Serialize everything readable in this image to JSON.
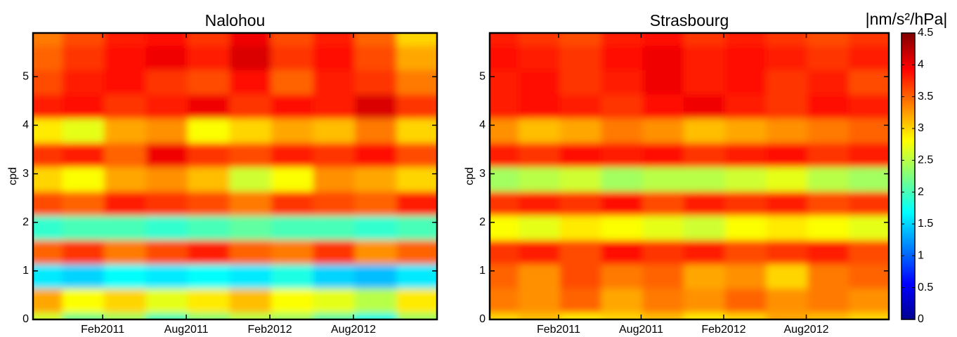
{
  "chart_data": [
    {
      "type": "heatmap",
      "title": "Nalohou",
      "ylabel": "cpd",
      "colormap": "jet",
      "clim": [
        0,
        4.5
      ],
      "xlim": [
        "2010-09",
        "2013-02"
      ],
      "ylim": [
        0,
        5.9
      ],
      "xticks": [
        {
          "value": "2011-02",
          "label": "Feb2011"
        },
        {
          "value": "2011-08",
          "label": "Aug2011"
        },
        {
          "value": "2012-02",
          "label": "Feb2012"
        },
        {
          "value": "2012-08",
          "label": "Aug2012"
        }
      ],
      "yticks": [
        0,
        1,
        2,
        3,
        4,
        5
      ],
      "x": [
        "2010-10",
        "2011-01",
        "2011-04",
        "2011-07",
        "2011-10",
        "2012-01",
        "2012-04",
        "2012-07",
        "2012-10",
        "2013-01"
      ],
      "y": [
        0,
        0.5,
        1,
        1.5,
        2,
        2.5,
        3,
        3.5,
        4,
        4.5,
        5,
        5.5,
        6
      ],
      "z": [
        [
          2.6,
          2.2,
          2.4,
          2.0,
          2.3,
          2.5,
          2.4,
          2.1,
          1.8,
          2.4
        ],
        [
          3.2,
          2.8,
          3.0,
          2.7,
          2.9,
          3.1,
          2.8,
          2.7,
          2.5,
          2.9
        ],
        [
          1.6,
          1.5,
          1.7,
          1.6,
          1.7,
          1.6,
          1.8,
          1.5,
          1.4,
          1.6
        ],
        [
          3.5,
          3.7,
          3.4,
          3.6,
          3.8,
          3.5,
          3.4,
          3.7,
          3.3,
          3.5
        ],
        [
          1.9,
          2.0,
          2.0,
          1.9,
          2.0,
          2.1,
          2.0,
          2.0,
          1.9,
          2.0
        ],
        [
          3.6,
          3.5,
          3.8,
          3.7,
          3.6,
          3.4,
          3.7,
          3.6,
          3.5,
          3.8
        ],
        [
          3.0,
          2.8,
          3.2,
          3.3,
          3.1,
          2.6,
          2.8,
          3.3,
          3.2,
          3.0
        ],
        [
          3.7,
          3.8,
          3.5,
          4.0,
          3.7,
          3.6,
          3.8,
          3.7,
          3.9,
          3.6
        ],
        [
          2.9,
          2.7,
          3.2,
          3.3,
          2.8,
          3.0,
          3.2,
          3.1,
          3.4,
          3.0
        ],
        [
          3.8,
          3.9,
          3.7,
          3.8,
          4.0,
          3.7,
          3.9,
          3.8,
          4.1,
          3.7
        ],
        [
          3.6,
          3.8,
          3.9,
          3.7,
          3.6,
          3.9,
          3.5,
          3.8,
          3.7,
          3.4
        ],
        [
          3.5,
          3.7,
          3.9,
          4.0,
          3.8,
          4.1,
          3.7,
          3.9,
          3.6,
          3.2
        ],
        [
          3.4,
          3.6,
          3.8,
          3.9,
          3.7,
          4.0,
          3.6,
          3.8,
          3.5,
          3.0
        ]
      ]
    },
    {
      "type": "heatmap",
      "title": "Strasbourg",
      "ylabel": "cpd",
      "colormap": "jet",
      "clim": [
        0,
        4.5
      ],
      "xlim": [
        "2010-09",
        "2013-02"
      ],
      "ylim": [
        0,
        5.9
      ],
      "xticks": [
        {
          "value": "2011-02",
          "label": "Feb2011"
        },
        {
          "value": "2011-08",
          "label": "Aug2011"
        },
        {
          "value": "2012-02",
          "label": "Feb2012"
        },
        {
          "value": "2012-08",
          "label": "Aug2012"
        }
      ],
      "yticks": [
        0,
        1,
        2,
        3,
        4,
        5
      ],
      "x": [
        "2010-10",
        "2011-01",
        "2011-04",
        "2011-07",
        "2011-10",
        "2012-01",
        "2012-04",
        "2012-07",
        "2012-10",
        "2013-01"
      ],
      "y": [
        0,
        0.5,
        1,
        1.5,
        2,
        2.5,
        3,
        3.5,
        4,
        4.5,
        5,
        5.5,
        6
      ],
      "z": [
        [
          3.0,
          3.1,
          2.9,
          3.0,
          3.1,
          2.9,
          3.0,
          3.2,
          3.1,
          3.0
        ],
        [
          3.4,
          3.3,
          3.5,
          3.2,
          3.4,
          3.3,
          3.5,
          3.3,
          3.4,
          3.3
        ],
        [
          3.5,
          3.3,
          3.6,
          3.4,
          3.5,
          3.2,
          3.3,
          3.0,
          3.4,
          3.5
        ],
        [
          3.7,
          3.8,
          3.6,
          3.9,
          3.7,
          3.8,
          3.6,
          3.7,
          3.8,
          3.6
        ],
        [
          2.8,
          2.7,
          2.9,
          2.8,
          2.7,
          2.6,
          2.8,
          2.9,
          2.8,
          2.7
        ],
        [
          3.7,
          3.8,
          3.7,
          3.9,
          3.6,
          3.8,
          3.7,
          3.8,
          3.6,
          3.7
        ],
        [
          2.4,
          2.5,
          2.6,
          2.4,
          2.5,
          2.5,
          2.6,
          2.7,
          2.5,
          2.4
        ],
        [
          3.8,
          3.7,
          3.9,
          3.8,
          3.9,
          3.7,
          3.8,
          3.9,
          3.7,
          3.8
        ],
        [
          3.3,
          3.1,
          3.2,
          3.4,
          3.3,
          3.1,
          3.2,
          3.3,
          3.4,
          3.5
        ],
        [
          3.8,
          3.9,
          3.8,
          3.7,
          3.9,
          4.0,
          3.8,
          3.7,
          3.9,
          3.8
        ],
        [
          3.8,
          3.9,
          3.7,
          3.8,
          4.0,
          3.8,
          3.9,
          3.7,
          3.8,
          3.6
        ],
        [
          3.9,
          3.8,
          3.7,
          3.9,
          4.0,
          3.8,
          3.9,
          3.8,
          3.7,
          3.8
        ],
        [
          3.8,
          3.7,
          3.6,
          3.8,
          3.9,
          3.7,
          3.8,
          3.7,
          3.6,
          3.7
        ]
      ],
      "colorbar": {
        "label": "|nm/s²/hPa|",
        "ticks": [
          0,
          0.5,
          1,
          1.5,
          2,
          2.5,
          3,
          3.5,
          4,
          4.5
        ]
      }
    }
  ]
}
